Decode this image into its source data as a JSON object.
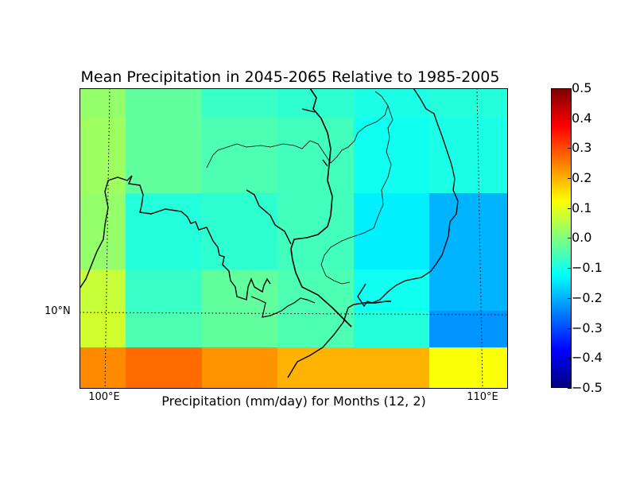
{
  "title": "Mean Precipitation in 2045-2065 Relative to 1985-2005",
  "xlabel": "Precipitation (mm/day) for Months (12, 2)",
  "map": {
    "lon_labels": [
      "100°E",
      "110°E"
    ],
    "lat_labels": [
      "10°N"
    ],
    "grid": {
      "rows": 6,
      "cols": 6,
      "cell_anomalies_mm_per_day": [
        [
          0.02,
          -0.03,
          -0.07,
          -0.08,
          -0.1,
          -0.09
        ],
        [
          0.03,
          -0.03,
          -0.05,
          -0.06,
          -0.11,
          -0.1
        ],
        [
          0.02,
          -0.09,
          -0.08,
          -0.06,
          -0.14,
          -0.2
        ],
        [
          0.07,
          -0.07,
          -0.03,
          -0.05,
          -0.11,
          -0.2
        ],
        [
          0.08,
          -0.05,
          -0.03,
          -0.05,
          -0.09,
          -0.23
        ],
        [
          0.24,
          0.27,
          0.23,
          0.2,
          0.2,
          0.12
        ]
      ]
    }
  },
  "colorbar": {
    "colormap": "jet",
    "min": -0.5,
    "max": 0.5,
    "ticks": [
      "0.5",
      "0.4",
      "0.3",
      "0.2",
      "0.1",
      "0.0",
      "−0.1",
      "−0.2",
      "−0.3",
      "−0.4",
      "−0.5"
    ],
    "colors": [
      "#00007f",
      "#0000ff",
      "#007fff",
      "#00ffff",
      "#7fff7f",
      "#ffff00",
      "#ff7f00",
      "#ff0000",
      "#7f0000"
    ]
  }
}
